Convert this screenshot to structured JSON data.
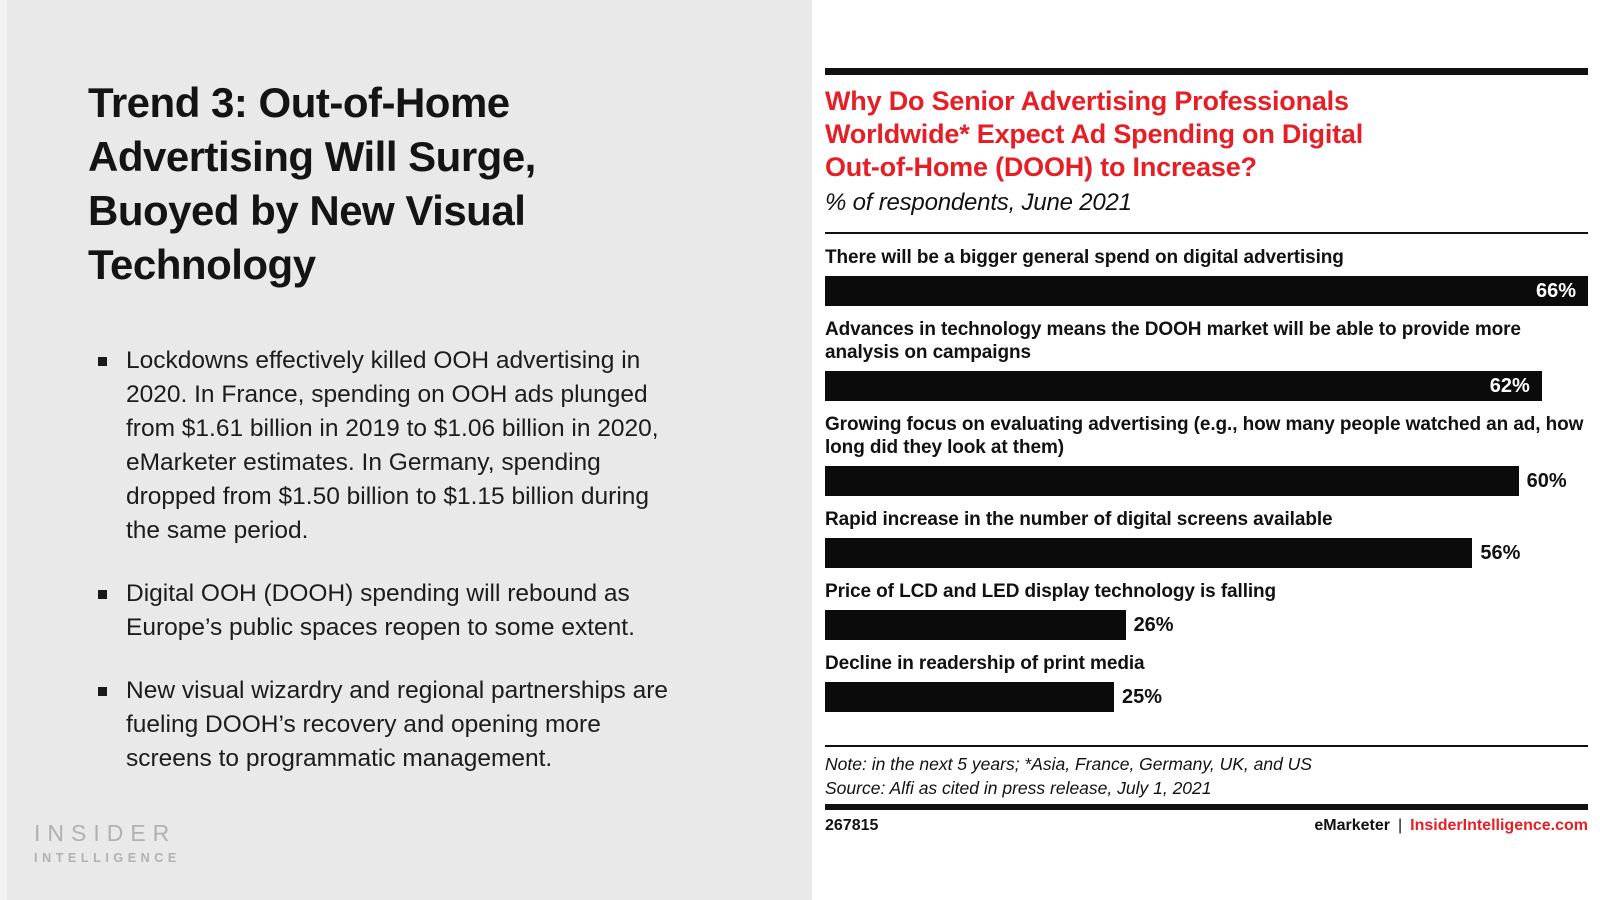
{
  "left_panel": {
    "title_lines": [
      "Trend 3: Out-of-Home",
      "Advertising Will Surge,",
      "Buoyed by New Visual",
      "Technology"
    ],
    "bullets": [
      "Lockdowns effectively killed OOH advertising in 2020. In France, spending on OOH ads plunged from $1.61 billion in 2019 to $1.06 billion in 2020, eMarketer estimates. In Germany, spending dropped from $1.50 billion to $1.15 billion during the same period.",
      "Digital OOH (DOOH) spending will rebound as Europe’s public spaces reopen to some extent.",
      "New visual wizardry and regional partnerships are fueling DOOH’s recovery and opening more screens to programmatic management."
    ],
    "logo": {
      "line1": "INSIDER",
      "line2": "INTELLIGENCE"
    }
  },
  "chart": {
    "title_lines": [
      "Why Do Senior Advertising Professionals",
      "Worldwide* Expect Ad Spending on Digital",
      "Out-of-Home (DOOH) to Increase?"
    ]
  },
  "chart_data": {
    "type": "bar",
    "orientation": "horizontal",
    "title": "Why Do Senior Advertising Professionals Worldwide* Expect Ad Spending on Digital Out-of-Home (DOOH) to Increase?",
    "subtitle": "% of respondents, June 2021",
    "unit": "%",
    "xlim": [
      0,
      66
    ],
    "grid": false,
    "legend": false,
    "bars": [
      {
        "label": "There will be a bigger general spend on digital advertising",
        "value": 66,
        "value_label": "66%",
        "label_inside": true
      },
      {
        "label": "Advances in technology means the DOOH market will be able to provide more analysis on campaigns",
        "value": 62,
        "value_label": "62%",
        "label_inside": true
      },
      {
        "label": "Growing focus on evaluating advertising (e.g., how many people watched an ad, how long did they look at them)",
        "value": 60,
        "value_label": "60%",
        "label_inside": false
      },
      {
        "label": "Rapid increase in the number of digital screens available",
        "value": 56,
        "value_label": "56%",
        "label_inside": false
      },
      {
        "label": "Price of LCD and LED display technology is falling",
        "value": 26,
        "value_label": "26%",
        "label_inside": false
      },
      {
        "label": "Decline in readership of print media",
        "value": 25,
        "value_label": "25%",
        "label_inside": false
      }
    ],
    "note": "Note: in the next 5 years; *Asia, France, Germany, UK, and US",
    "source": "Source: Alfi as cited in press release, July 1, 2021"
  },
  "footer": {
    "chart_id": "267815",
    "brand": "eMarketer",
    "separator": "|",
    "site": "InsiderIntelligence.com"
  },
  "colors": {
    "accent_red": "#e61e25",
    "bar_black": "#0b0b0b",
    "panel_gray": "#e9e9e9",
    "logo_gray": "#b1b1b4"
  }
}
